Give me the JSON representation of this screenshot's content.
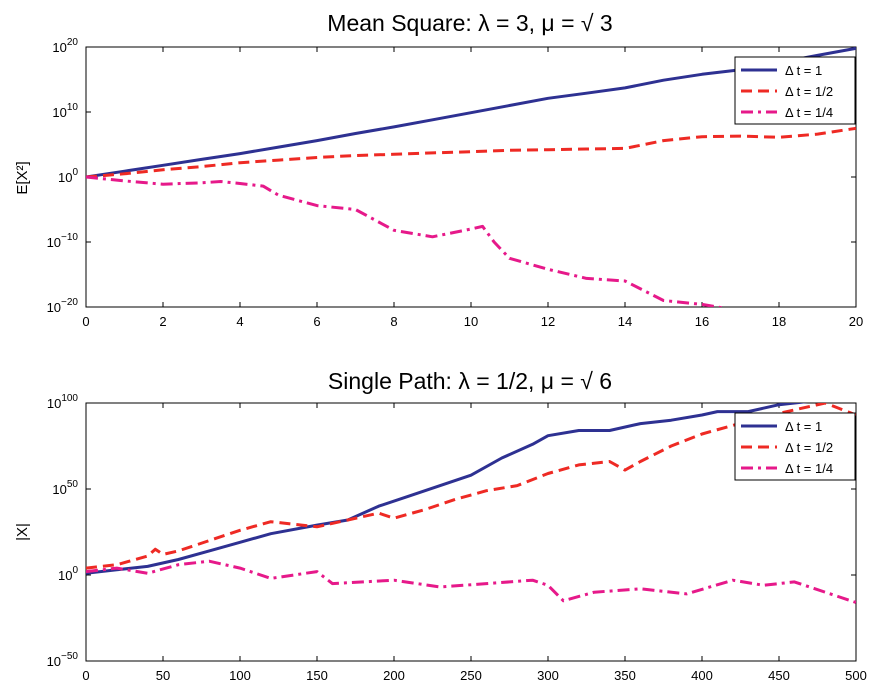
{
  "colors": {
    "dt1": "#2e3192",
    "dt2": "#ee2a24",
    "dt4": "#e6198a"
  },
  "chart_data": [
    {
      "type": "line",
      "title": "Mean  Square: λ =   3, μ = √ 3",
      "ylabel": "E[X²]",
      "xlim": [
        0,
        20
      ],
      "ylim_exp": [
        -20,
        20
      ],
      "y_scale": "log",
      "xticks": [
        "0",
        "2",
        "4",
        "6",
        "8",
        "10",
        "12",
        "14",
        "16",
        "18",
        "20"
      ],
      "yticks": [
        {
          "base": "10",
          "exp": "20",
          "value": 20
        },
        {
          "base": "10",
          "exp": "10",
          "value": 10
        },
        {
          "base": "10",
          "exp": "0",
          "value": 0
        },
        {
          "base": "10",
          "exp": "−10",
          "value": -10
        },
        {
          "base": "10",
          "exp": "−20",
          "value": -20
        }
      ],
      "legend_position": "top-right",
      "series": [
        {
          "name": "Δ t = 1",
          "style": "solid",
          "color_key": "dt1",
          "x": [
            0,
            1,
            2,
            3,
            4,
            5,
            6,
            7,
            8,
            9,
            10,
            11,
            12,
            13,
            14,
            15,
            16,
            17,
            18,
            19,
            20
          ],
          "log10_y": [
            0,
            0.9,
            1.8,
            2.7,
            3.6,
            4.6,
            5.6,
            6.7,
            7.7,
            8.8,
            9.9,
            11,
            12.1,
            12.9,
            13.7,
            14.9,
            15.8,
            16.5,
            17.6,
            18.7,
            19.8
          ]
        },
        {
          "name": "Δ t = 1/2",
          "style": "dashed",
          "color_key": "dt2",
          "x": [
            0,
            1,
            2,
            3,
            4,
            5,
            6,
            7,
            8,
            9,
            10,
            11,
            12,
            13,
            14,
            15,
            16,
            17,
            18,
            19,
            20
          ],
          "log10_y": [
            0,
            0.5,
            1.1,
            1.6,
            2.2,
            2.6,
            3,
            3.3,
            3.5,
            3.7,
            3.9,
            4.1,
            4.2,
            4.3,
            4.4,
            5.6,
            6.2,
            6.3,
            6.1,
            6.6,
            7.5
          ]
        },
        {
          "name": "Δ t = 1/4",
          "style": "dashdot",
          "color_key": "dt4",
          "x": [
            0,
            1,
            2,
            3,
            3.5,
            4,
            4.6,
            5,
            6,
            7,
            8,
            9,
            10,
            10.3,
            10.6,
            11,
            12,
            13,
            14,
            15,
            16,
            17,
            17.3
          ],
          "log10_y": [
            0,
            -0.6,
            -1.1,
            -0.9,
            -0.7,
            -1,
            -1.4,
            -2.8,
            -4.4,
            -5,
            -8.2,
            -9.2,
            -8,
            -7.6,
            -10,
            -12.5,
            -14.2,
            -15.6,
            -16,
            -19,
            -19.6,
            -20.6,
            -21
          ]
        }
      ]
    },
    {
      "type": "line",
      "title": "Single Path: λ = 1/2, μ = √ 6",
      "ylabel": "|X|",
      "xlim": [
        0,
        500
      ],
      "ylim_exp": [
        -50,
        100
      ],
      "y_scale": "log",
      "xticks": [
        "0",
        "50",
        "100",
        "150",
        "200",
        "250",
        "300",
        "350",
        "400",
        "450",
        "500"
      ],
      "yticks": [
        {
          "base": "10",
          "exp": "100",
          "value": 100
        },
        {
          "base": "10",
          "exp": "50",
          "value": 50
        },
        {
          "base": "10",
          "exp": "0",
          "value": 0
        },
        {
          "base": "10",
          "exp": "−50",
          "value": -50
        }
      ],
      "legend_position": "top-right",
      "series": [
        {
          "name": "Δ t = 1",
          "style": "solid",
          "color_key": "dt1",
          "x": [
            0,
            20,
            40,
            60,
            80,
            100,
            120,
            150,
            170,
            190,
            210,
            230,
            250,
            270,
            290,
            300,
            320,
            340,
            360,
            380,
            400,
            410,
            430,
            450,
            470,
            480
          ],
          "log10_y": [
            1,
            3,
            5,
            9,
            14,
            19,
            24,
            29,
            32,
            40,
            46,
            52,
            58,
            68,
            76,
            81,
            84,
            84,
            88,
            90,
            93,
            95,
            95,
            99,
            101,
            104
          ]
        },
        {
          "name": "Δ t = 1/2",
          "style": "dashed",
          "color_key": "dt2",
          "x": [
            0,
            20,
            40,
            45,
            50,
            60,
            80,
            100,
            120,
            140,
            150,
            170,
            190,
            200,
            220,
            240,
            260,
            280,
            300,
            320,
            340,
            350,
            360,
            380,
            400,
            420,
            440,
            460,
            480,
            500
          ],
          "log10_y": [
            4,
            6,
            11,
            15,
            12,
            14,
            20,
            26,
            31,
            29,
            28,
            32,
            36,
            33,
            38,
            44,
            49,
            52,
            59,
            64,
            66,
            61,
            66,
            75,
            82,
            87,
            92,
            96,
            100,
            93
          ]
        },
        {
          "name": "Δ t = 1/4",
          "style": "dashdot",
          "color_key": "dt4",
          "x": [
            0,
            20,
            40,
            60,
            80,
            100,
            120,
            150,
            160,
            180,
            200,
            230,
            260,
            290,
            300,
            310,
            330,
            360,
            390,
            420,
            440,
            460,
            480,
            500
          ],
          "log10_y": [
            2,
            4,
            1,
            6,
            8,
            4,
            -2,
            2,
            -5,
            -4,
            -3,
            -7,
            -5,
            -3,
            -6,
            -15,
            -10,
            -8,
            -11,
            -3,
            -6,
            -4,
            -10,
            -16
          ]
        }
      ]
    }
  ]
}
